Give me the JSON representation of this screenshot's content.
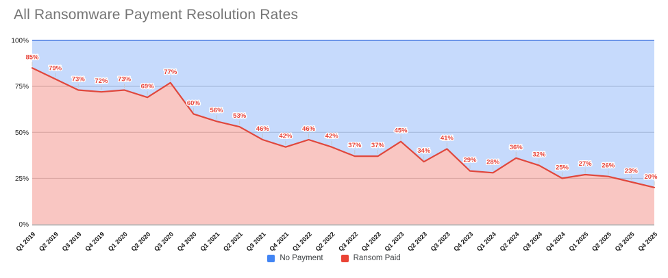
{
  "title": "All Ransomware Payment Resolution Rates",
  "legend": {
    "items": [
      {
        "label": "No Payment",
        "color": "#4285f4"
      },
      {
        "label": "Ransom Paid",
        "color": "#ea4335"
      }
    ]
  },
  "colors": {
    "title_text": "#757575",
    "red_line": "#e0473c",
    "red_fill": "rgba(234,67,53,0.30)",
    "blue_line": "#6d96e8",
    "blue_fill": "rgba(66,133,244,0.30)",
    "grid": "#cccccc",
    "axis": "#9e9e9e",
    "data_label": "#e8443a",
    "tick_text": "#222222",
    "leader": "#c9c9c9"
  },
  "chart_data": {
    "type": "area",
    "stacked": true,
    "title": "All Ransomware Payment Resolution Rates",
    "xlabel": "",
    "ylabel": "",
    "ylim": [
      0,
      100
    ],
    "grid": true,
    "legend_position": "bottom",
    "y_tick_labels": [
      "0%",
      "25%",
      "50%",
      "75%",
      "100%"
    ],
    "y_tick_values": [
      0,
      25,
      50,
      75,
      100
    ],
    "categories": [
      "Q1 2019",
      "Q2 2019",
      "Q3 2019",
      "Q4 2019",
      "Q1 2020",
      "Q2 2020",
      "Q3 2020",
      "Q4 2020",
      "Q1 2021",
      "Q2 2021",
      "Q3 2021",
      "Q4 2021",
      "Q1 2022",
      "Q2 2022",
      "Q3 2022",
      "Q4 2022",
      "Q1 2023",
      "Q2 2023",
      "Q3 2023",
      "Q4 2023",
      "Q1 2024",
      "Q2 2024",
      "Q3 2024",
      "Q4 2024",
      "Q1 2025",
      "Q2 2025",
      "Q3 2025",
      "Q4 2025"
    ],
    "series": [
      {
        "name": "Ransom Paid",
        "color": "#ea4335",
        "values": [
          85,
          79,
          73,
          72,
          73,
          69,
          77,
          60,
          56,
          53,
          46,
          42,
          46,
          42,
          37,
          37,
          45,
          34,
          41,
          29,
          28,
          36,
          32,
          25,
          27,
          26,
          23,
          20
        ],
        "data_labels": [
          "85%",
          "79%",
          "73%",
          "72%",
          "73%",
          "69%",
          "77%",
          "60%",
          "56%",
          "53%",
          "46%",
          "42%",
          "46%",
          "42%",
          "37%",
          "37%",
          "45%",
          "34%",
          "41%",
          "29%",
          "28%",
          "36%",
          "32%",
          "25%",
          "27%",
          "26%",
          "23%",
          "20%"
        ]
      },
      {
        "name": "No Payment",
        "color": "#4285f4",
        "values": [
          15,
          21,
          27,
          28,
          27,
          31,
          23,
          40,
          44,
          47,
          54,
          58,
          54,
          58,
          63,
          63,
          55,
          66,
          59,
          71,
          72,
          64,
          68,
          75,
          73,
          74,
          77,
          80
        ]
      }
    ]
  }
}
